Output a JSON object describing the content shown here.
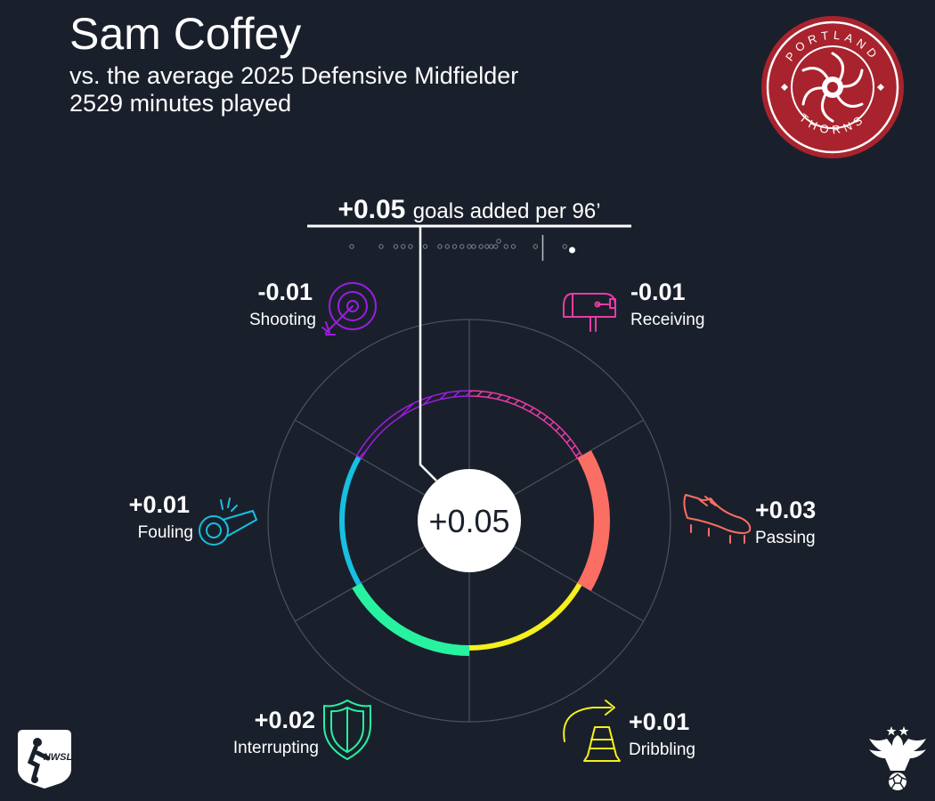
{
  "header": {
    "player_name": "Sam Coffey",
    "comparison": "vs. the average 2025 Defensive Midfielder",
    "minutes": "2529 minutes played"
  },
  "team_logo": {
    "name": "Portland Thorns",
    "ring_text": "PORTLAND THORNS",
    "color": "#a8232d"
  },
  "league_logo": {
    "text": "NWSL"
  },
  "chart_data": {
    "type": "pie",
    "title": "+0.05 goals added per 96’",
    "total_label": "+0.05",
    "total": 0.05,
    "headline": {
      "value": "+0.05",
      "text": "goals added per 96’"
    },
    "categories": [
      {
        "name": "Receiving",
        "label": "-0.01",
        "value": -0.01,
        "color": "#e83ba8",
        "icon": "mailbox-icon"
      },
      {
        "name": "Passing",
        "label": "+0.03",
        "value": 0.03,
        "color": "#fb6e64",
        "icon": "cleat-icon"
      },
      {
        "name": "Dribbling",
        "label": "+0.01",
        "value": 0.01,
        "color": "#f6f01e",
        "icon": "traffic-cone-icon"
      },
      {
        "name": "Interrupting",
        "label": "+0.02",
        "value": 0.02,
        "color": "#27f2a0",
        "icon": "shield-icon"
      },
      {
        "name": "Fouling",
        "label": "+0.01",
        "value": 0.01,
        "color": "#17bfe0",
        "icon": "whistle-icon"
      },
      {
        "name": "Shooting",
        "label": "-0.01",
        "value": -0.01,
        "color": "#9b1de0",
        "icon": "target-icon"
      }
    ],
    "distribution": {
      "marker": 0.05,
      "highlight": 0.07,
      "points": [
        -0.08,
        -0.06,
        -0.05,
        -0.045,
        -0.04,
        -0.03,
        -0.02,
        -0.015,
        -0.01,
        -0.005,
        0.0,
        0.003,
        0.008,
        0.012,
        0.015,
        0.018,
        0.02,
        0.025,
        0.03,
        0.045,
        0.065
      ]
    }
  }
}
